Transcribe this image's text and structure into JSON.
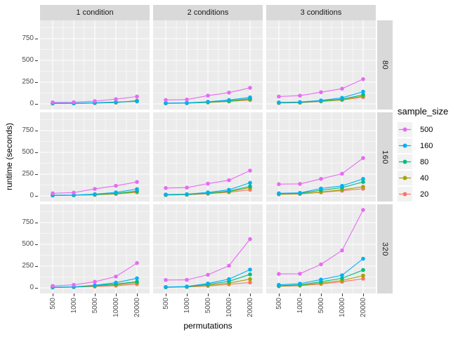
{
  "colors": {
    "panel_background": "#ebebeb",
    "strip_background": "#d9d9d9",
    "gridline": "#ffffff",
    "axis_text": "#4d4d4d",
    "series": {
      "500": "#E76BF3",
      "160": "#00B0F6",
      "80": "#00BF7D",
      "40": "#A3A500",
      "20": "#F8766D"
    }
  },
  "legend": {
    "title": "sample_size",
    "entries": [
      {
        "label": "500",
        "color": "#E76BF3"
      },
      {
        "label": "160",
        "color": "#00B0F6"
      },
      {
        "label": "80",
        "color": "#00BF7D"
      },
      {
        "label": "40",
        "color": "#A3A500"
      },
      {
        "label": "20",
        "color": "#F8766D"
      }
    ]
  },
  "chart_data": {
    "type": "line",
    "x": [
      500,
      1000,
      5000,
      10000,
      20000
    ],
    "x_scale": "discrete-equal-spacing",
    "xlabel": "permutations",
    "ylabel": "runtime (seconds)",
    "y_ticks": [
      750,
      500,
      250,
      0
    ],
    "ylim": [
      -65,
      960
    ],
    "grid": "white major+minor gridlines on grey panels",
    "legend_title": "sample_size",
    "legend_position": "right",
    "series_order": [
      "500",
      "160",
      "80",
      "40",
      "20"
    ],
    "facet_cols": [
      "1 condition",
      "2 conditions",
      "3 conditions"
    ],
    "facet_rows": [
      "80",
      "160",
      "320"
    ],
    "facets": [
      {
        "row": "80",
        "col": "1 condition",
        "series": [
          {
            "name": "500",
            "values": [
              18,
              20,
              32,
              55,
              85
            ]
          },
          {
            "name": "160",
            "values": [
              8,
              9,
              14,
              22,
              28
            ]
          },
          {
            "name": "80",
            "values": [
              6,
              7,
              11,
              18,
              35
            ]
          },
          {
            "name": "40",
            "values": [
              5,
              6,
              10,
              16,
              32
            ]
          },
          {
            "name": "20",
            "values": [
              5,
              6,
              9,
              15,
              38
            ]
          }
        ]
      },
      {
        "row": "80",
        "col": "2 conditions",
        "series": [
          {
            "name": "500",
            "values": [
              45,
              50,
              95,
              130,
              185
            ]
          },
          {
            "name": "160",
            "values": [
              10,
              13,
              25,
              45,
              75
            ]
          },
          {
            "name": "80",
            "values": [
              8,
              10,
              20,
              35,
              60
            ]
          },
          {
            "name": "40",
            "values": [
              7,
              9,
              18,
              30,
              50
            ]
          },
          {
            "name": "20",
            "values": [
              6,
              8,
              16,
              28,
              45
            ]
          }
        ]
      },
      {
        "row": "80",
        "col": "3 conditions",
        "series": [
          {
            "name": "500",
            "values": [
              85,
              95,
              135,
              175,
              285
            ]
          },
          {
            "name": "160",
            "values": [
              18,
              22,
              40,
              70,
              140
            ]
          },
          {
            "name": "80",
            "values": [
              15,
              18,
              35,
              55,
              105
            ]
          },
          {
            "name": "40",
            "values": [
              12,
              15,
              30,
              48,
              90
            ]
          },
          {
            "name": "20",
            "values": [
              10,
              14,
              28,
              45,
              78
            ]
          }
        ]
      },
      {
        "row": "160",
        "col": "1 condition",
        "series": [
          {
            "name": "500",
            "values": [
              30,
              38,
              80,
              115,
              160
            ]
          },
          {
            "name": "160",
            "values": [
              8,
              10,
              20,
              40,
              78
            ]
          },
          {
            "name": "80",
            "values": [
              6,
              8,
              15,
              30,
              55
            ]
          },
          {
            "name": "40",
            "values": [
              5,
              7,
              12,
              25,
              45
            ]
          },
          {
            "name": "20",
            "values": [
              5,
              7,
              12,
              22,
              40
            ]
          }
        ]
      },
      {
        "row": "160",
        "col": "2 conditions",
        "series": [
          {
            "name": "500",
            "values": [
              90,
              95,
              140,
              180,
              290
            ]
          },
          {
            "name": "160",
            "values": [
              15,
              20,
              40,
              70,
              150
            ]
          },
          {
            "name": "80",
            "values": [
              12,
              16,
              32,
              55,
              110
            ]
          },
          {
            "name": "40",
            "values": [
              10,
              14,
              28,
              48,
              95
            ]
          },
          {
            "name": "20",
            "values": [
              10,
              13,
              25,
              42,
              70
            ]
          }
        ]
      },
      {
        "row": "160",
        "col": "3 conditions",
        "series": [
          {
            "name": "500",
            "values": [
              135,
              138,
              195,
              255,
              435
            ]
          },
          {
            "name": "160",
            "values": [
              30,
              35,
              85,
              115,
              195
            ]
          },
          {
            "name": "80",
            "values": [
              25,
              30,
              65,
              95,
              160
            ]
          },
          {
            "name": "40",
            "values": [
              20,
              25,
              45,
              70,
              105
            ]
          },
          {
            "name": "20",
            "values": [
              18,
              22,
              40,
              60,
              82
            ]
          }
        ]
      },
      {
        "row": "320",
        "col": "1 condition",
        "series": [
          {
            "name": "500",
            "values": [
              22,
              35,
              70,
              130,
              285
            ]
          },
          {
            "name": "160",
            "values": [
              8,
              12,
              30,
              60,
              110
            ]
          },
          {
            "name": "80",
            "values": [
              6,
              10,
              25,
              45,
              70
            ]
          },
          {
            "name": "40",
            "values": [
              5,
              9,
              20,
              35,
              60
            ]
          },
          {
            "name": "20",
            "values": [
              5,
              8,
              15,
              25,
              42
            ]
          }
        ]
      },
      {
        "row": "320",
        "col": "2 conditions",
        "series": [
          {
            "name": "500",
            "values": [
              90,
              92,
              150,
              255,
              560
            ]
          },
          {
            "name": "160",
            "values": [
              10,
              15,
              50,
              100,
              210
            ]
          },
          {
            "name": "80",
            "values": [
              8,
              13,
              40,
              75,
              155
            ]
          },
          {
            "name": "40",
            "values": [
              7,
              12,
              30,
              55,
              100
            ]
          },
          {
            "name": "20",
            "values": [
              6,
              10,
              22,
              40,
              62
            ]
          }
        ]
      },
      {
        "row": "320",
        "col": "3 conditions",
        "series": [
          {
            "name": "500",
            "values": [
              160,
              162,
              270,
              430,
              895
            ]
          },
          {
            "name": "160",
            "values": [
              35,
              48,
              95,
              145,
              335
            ]
          },
          {
            "name": "80",
            "values": [
              25,
              35,
              70,
              110,
              205
            ]
          },
          {
            "name": "40",
            "values": [
              20,
              28,
              55,
              85,
              140
            ]
          },
          {
            "name": "20",
            "values": [
              18,
              25,
              45,
              70,
              105
            ]
          }
        ]
      }
    ]
  }
}
